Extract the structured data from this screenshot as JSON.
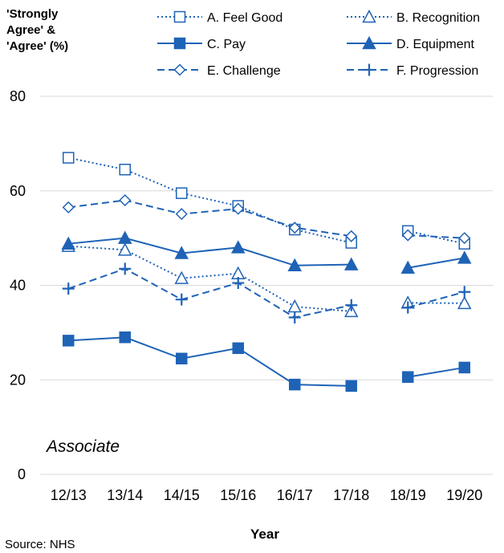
{
  "chart_data": {
    "type": "line",
    "ylabel_lines": [
      "'Strongly",
      "Agree' &",
      "'Agree' (%)"
    ],
    "xlabel": "Year",
    "panel_label": "Associate",
    "source": "Source: NHS",
    "ylim": [
      0,
      80
    ],
    "yticks": [
      0,
      20,
      40,
      60,
      80
    ],
    "grid": true,
    "legend_position": "top",
    "categories": [
      "12/13",
      "13/14",
      "14/15",
      "15/16",
      "16/17",
      "17/18",
      "18/19",
      "19/20"
    ],
    "color": "#1f63b6",
    "series": [
      {
        "name": "A. Feel Good",
        "marker": "square-open",
        "dash": "dotted",
        "values": [
          67,
          64.5,
          59.5,
          56.8,
          51.8,
          49,
          51.5,
          48.8
        ]
      },
      {
        "name": "B. Recognition",
        "marker": "triangle-open",
        "dash": "dotted",
        "values": [
          48.3,
          47.5,
          41.5,
          42.5,
          35.5,
          34.5,
          36.3,
          36.2
        ]
      },
      {
        "name": "C. Pay",
        "marker": "square-filled",
        "dash": "solid",
        "values": [
          28.3,
          29,
          24.5,
          26.7,
          19,
          18.7,
          20.6,
          22.6
        ]
      },
      {
        "name": "D. Equipment",
        "marker": "triangle-filled",
        "dash": "solid",
        "values": [
          48.8,
          50,
          46.8,
          48,
          44.2,
          44.4,
          43.7,
          45.8
        ]
      },
      {
        "name": "E. Challenge",
        "marker": "diamond-open",
        "dash": "dashed",
        "values": [
          56.5,
          58,
          55.1,
          56.2,
          52.2,
          50.4,
          50.6,
          50
        ]
      },
      {
        "name": "F. Progression",
        "marker": "plus",
        "dash": "dashed",
        "values": [
          39.3,
          43.5,
          37,
          40.5,
          33.2,
          35.8,
          35.3,
          38.6
        ]
      }
    ]
  }
}
